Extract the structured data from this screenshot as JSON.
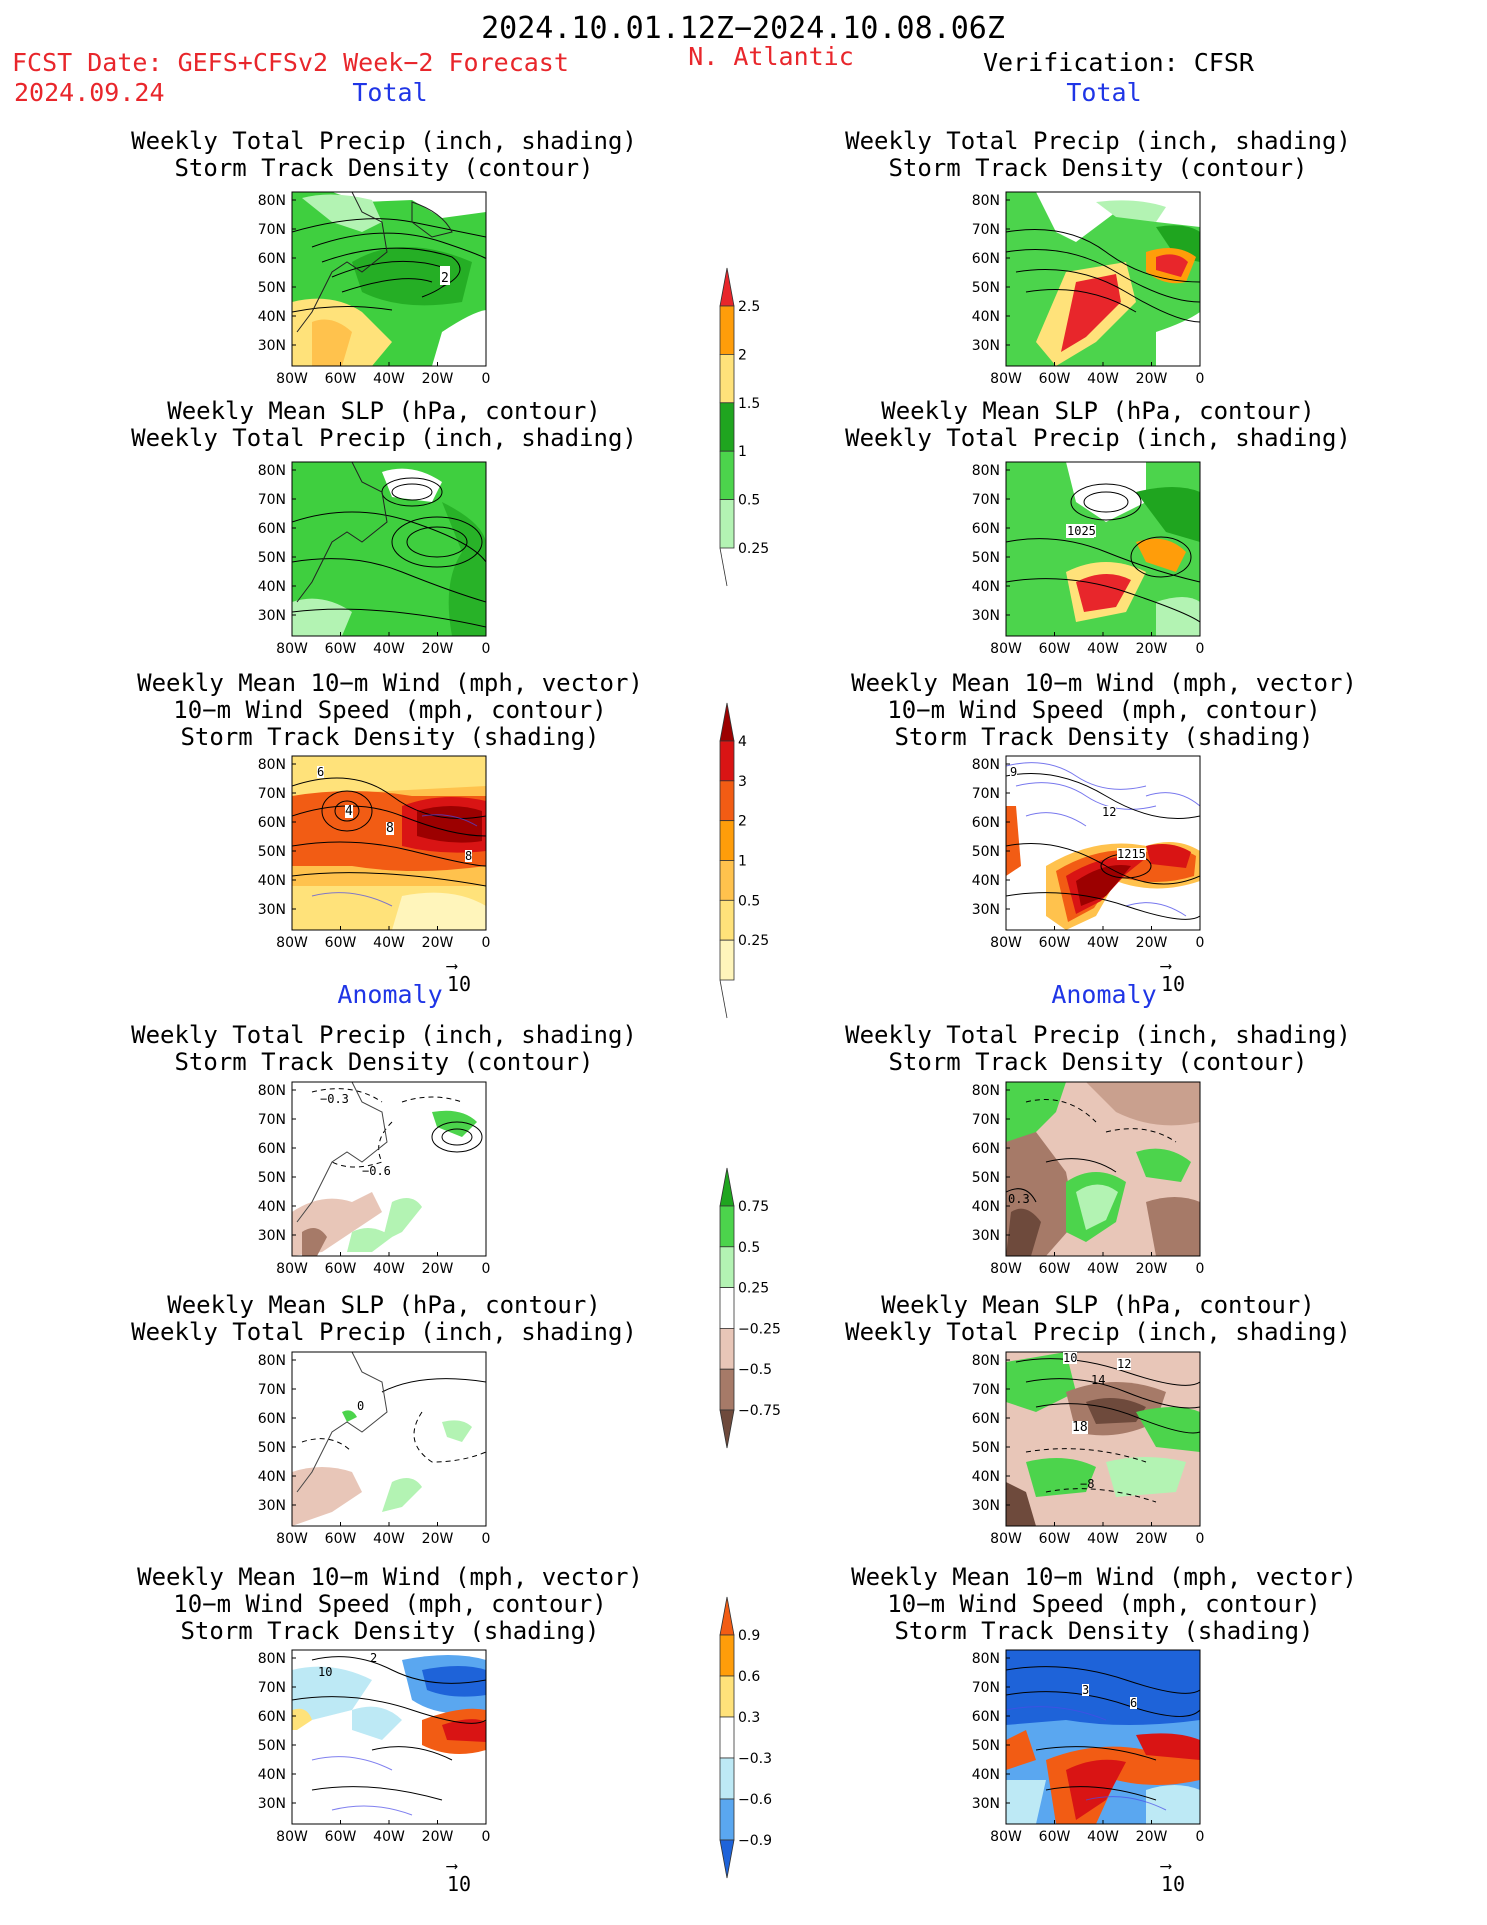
{
  "header": {
    "period": "2024.10.01.12Z−2024.10.08.06Z",
    "fcst_date_label": "FCST Date: GEFS+CFSv2 Week−2 Forecast",
    "fcst_date": "2024.09.24",
    "region": "N. Atlantic",
    "verification": "Verification: CFSR"
  },
  "sections": {
    "total": "Total",
    "anomaly": "Anomaly"
  },
  "panel_titles": {
    "precip_storm": [
      "Weekly Total Precip (inch, shading)",
      "Storm Track Density (contour)"
    ],
    "slp_precip": [
      "Weekly Mean SLP (hPa, contour)",
      "Weekly Total Precip (inch, shading)"
    ],
    "wind_storm": [
      "Weekly Mean 10−m Wind (mph, vector)",
      "10−m Wind Speed (mph, contour)",
      "Storm Track Density (shading)"
    ]
  },
  "axes": {
    "lat_ticks": [
      "80N",
      "70N",
      "60N",
      "50N",
      "40N",
      "30N"
    ],
    "lon_ticks": [
      "80W",
      "60W",
      "40W",
      "20W",
      "0"
    ]
  },
  "vector_ref": "10",
  "contour_labels": {
    "fc_total_storm": "2",
    "vf_total_slp": "1025",
    "fc_total_wind": [
      "6",
      "4",
      "8",
      "8"
    ],
    "vf_total_wind": [
      "9",
      "12",
      "1215"
    ],
    "fc_anom_precip": [
      "−0.3",
      "−0.6"
    ],
    "vf_anom_precip": "0.3",
    "fc_anom_slp": "0",
    "vf_anom_slp": [
      "10",
      "12",
      "14",
      "18",
      "−8"
    ],
    "fc_anom_wind": [
      "10",
      "2"
    ],
    "vf_anom_wind": [
      "3",
      "6"
    ]
  },
  "colorbars": {
    "total_precip": {
      "labels": [
        "2.5",
        "2",
        "1.5",
        "1",
        "0.5",
        "0.25"
      ],
      "colors": [
        "#e8262b",
        "#ff9d0a",
        "#ffe27a",
        "#1fa51f",
        "#4cd44c",
        "#b3f3b3"
      ]
    },
    "total_storm": {
      "labels": [
        "4",
        "3",
        "2",
        "1",
        "0.5",
        "0.25"
      ],
      "colors": [
        "#9c0000",
        "#d91414",
        "#f25c14",
        "#ff9d0a",
        "#ffc24d",
        "#ffe27a",
        "#fff5bb"
      ]
    },
    "anom_precip": {
      "labels": [
        "0.75",
        "0.5",
        "0.25",
        "−0.25",
        "−0.5",
        "−0.75"
      ],
      "colors": [
        "#1fa51f",
        "#4cd44c",
        "#b3f3b3",
        "#ffffff",
        "#e8c6b8",
        "#a67a68",
        "#6e4a3c"
      ]
    },
    "anom_storm": {
      "labels": [
        "0.9",
        "0.6",
        "0.3",
        "−0.3",
        "−0.6",
        "−0.9"
      ],
      "colors": [
        "#f25c14",
        "#ff9d0a",
        "#ffe27a",
        "#ffffff",
        "#bde9f5",
        "#5aa7f0",
        "#1e63d9"
      ]
    }
  },
  "colors": {
    "header_red": "#e8262b",
    "section_blue": "#1f35e6"
  }
}
